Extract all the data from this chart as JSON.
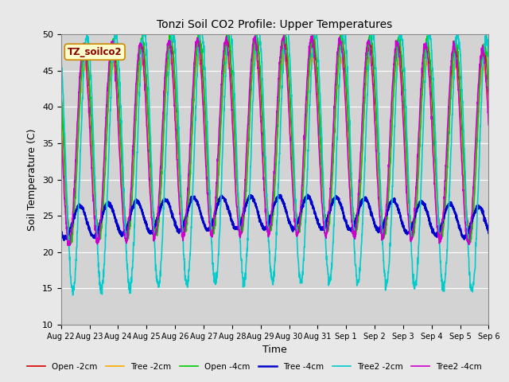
{
  "title": "Tonzi Soil CO2 Profile: Upper Temperatures",
  "ylabel": "Soil Temperature (C)",
  "xlabel": "Time",
  "watermark": "TZ_soilco2",
  "ylim": [
    10,
    50
  ],
  "bg_color": "#d3d3d3",
  "fig_facecolor": "#e8e8e8",
  "series": {
    "Open -2cm": {
      "color": "#dd0000",
      "lw": 1.2
    },
    "Tree -2cm": {
      "color": "#ffaa00",
      "lw": 1.2
    },
    "Open -4cm": {
      "color": "#00cc00",
      "lw": 1.2
    },
    "Tree -4cm": {
      "color": "#0000cc",
      "lw": 1.8
    },
    "Tree2 -2cm": {
      "color": "#00cccc",
      "lw": 1.2
    },
    "Tree2 -4cm": {
      "color": "#cc00cc",
      "lw": 1.2
    }
  },
  "tick_labels": [
    "Aug 22",
    "Aug 23",
    "Aug 24",
    "Aug 25",
    "Aug 26",
    "Aug 27",
    "Aug 28",
    "Aug 29",
    "Aug 30",
    "Aug 31",
    "Sep 1",
    "Sep 2",
    "Sep 3",
    "Sep 4",
    "Sep 5",
    "Sep 6"
  ],
  "n_days": 15,
  "pts_per_day": 144
}
